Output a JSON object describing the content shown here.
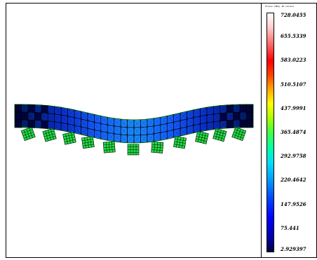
{
  "legend": {
    "title": "Stress (MPa) 2D Contour",
    "ticks": [
      "728.0455",
      "655.5339",
      "583.0223",
      "510.5107",
      "437.9991",
      "365.4874",
      "292.9758",
      "220.4642",
      "147.9526",
      "75.441",
      "2.929397"
    ]
  },
  "colors": {
    "mesh_line": "#000000",
    "outline": "#22ff22",
    "element_low": "#000033",
    "element_mid": "#1133ee",
    "element_high": "#00ccff",
    "pad_fill": "#22dd44"
  }
}
